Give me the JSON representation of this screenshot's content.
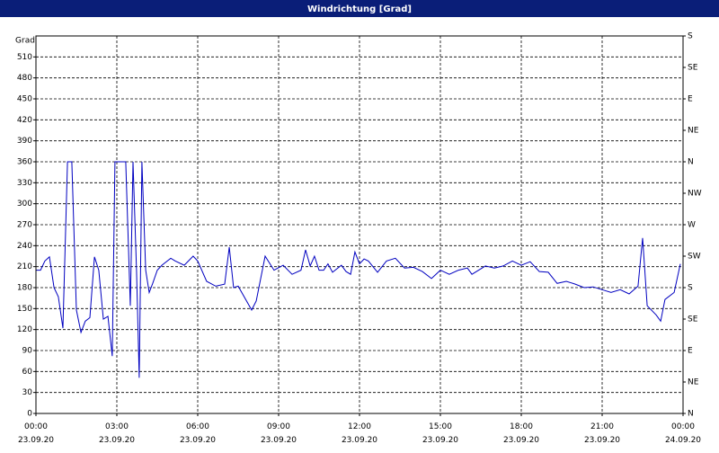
{
  "chart_data": {
    "type": "line",
    "title": "Windrichtung [Grad]",
    "ylabel": "Grad",
    "x": [
      0,
      0.17,
      0.33,
      0.5,
      0.67,
      0.83,
      1,
      1.17,
      1.33,
      1.5,
      1.67,
      1.83,
      2,
      2.17,
      2.33,
      2.5,
      2.67,
      2.83,
      2.93,
      3.17,
      3.33,
      3.5,
      3.6,
      3.73,
      3.83,
      3.93,
      4.07,
      4.2,
      4.33,
      4.5,
      4.67,
      5,
      5.17,
      5.5,
      5.83,
      6,
      6.33,
      6.67,
      7,
      7.17,
      7.33,
      7.5,
      8,
      8.17,
      8.5,
      8.83,
      9.17,
      9.5,
      9.83,
      10,
      10.17,
      10.33,
      10.5,
      10.67,
      10.83,
      11,
      11.33,
      11.5,
      11.67,
      11.83,
      12,
      12.17,
      12.33,
      12.67,
      13,
      13.33,
      13.67,
      14,
      14.33,
      14.67,
      15,
      15.33,
      15.67,
      16,
      16.17,
      16.67,
      17,
      17.33,
      17.67,
      18,
      18.33,
      18.67,
      19,
      19.33,
      19.67,
      20,
      20.33,
      20.67,
      21,
      21.33,
      21.67,
      22,
      22.33,
      22.5,
      22.67,
      23,
      23.17,
      23.33,
      23.67,
      23.9
    ],
    "series": [
      {
        "name": "Windrichtung",
        "color": "#0000c0",
        "values": [
          205,
          205,
          218,
          224,
          180,
          167,
          122,
          360,
          360,
          148,
          116,
          132,
          137,
          224,
          205,
          135,
          139,
          82,
          360,
          360,
          360,
          154,
          360,
          205,
          51,
          360,
          205,
          173,
          186,
          205,
          212,
          222,
          218,
          212,
          225,
          218,
          189,
          182,
          185,
          238,
          180,
          182,
          148,
          161,
          225,
          205,
          212,
          199,
          205,
          234,
          211,
          225,
          205,
          205,
          214,
          202,
          212,
          203,
          199,
          231,
          214,
          221,
          218,
          202,
          218,
          222,
          208,
          209,
          203,
          193,
          205,
          199,
          205,
          208,
          199,
          211,
          208,
          211,
          218,
          212,
          217,
          203,
          202,
          186,
          189,
          185,
          180,
          181,
          177,
          173,
          177,
          171,
          182,
          251,
          154,
          141,
          132,
          163,
          173,
          214
        ]
      }
    ],
    "xlim": [
      0,
      24
    ],
    "xticks": [
      {
        "value": 0,
        "label": "00:00 23.09.20"
      },
      {
        "value": 3,
        "label": "03:00 23.09.20"
      },
      {
        "value": 6,
        "label": "06:00 23.09.20"
      },
      {
        "value": 9,
        "label": "09:00 23.09.20"
      },
      {
        "value": 12,
        "label": "12:00 23.09.20"
      },
      {
        "value": 15,
        "label": "15:00 23.09.20"
      },
      {
        "value": 18,
        "label": "18:00 23.09.20"
      },
      {
        "value": 21,
        "label": "21:00 23.09.20"
      },
      {
        "value": 24,
        "label": "00:00 24.09.20"
      }
    ],
    "ylim": [
      0,
      540
    ],
    "yticks": [
      0,
      30,
      60,
      90,
      120,
      150,
      180,
      210,
      240,
      270,
      300,
      330,
      360,
      390,
      420,
      450,
      480,
      510
    ],
    "y2lim": [
      0,
      540
    ],
    "y2ticks": [
      {
        "value": 0,
        "label": "N"
      },
      {
        "value": 45,
        "label": "NE"
      },
      {
        "value": 90,
        "label": "E"
      },
      {
        "value": 135,
        "label": "SE"
      },
      {
        "value": 180,
        "label": "S"
      },
      {
        "value": 225,
        "label": "SW"
      },
      {
        "value": 270,
        "label": "W"
      },
      {
        "value": 315,
        "label": "NW"
      },
      {
        "value": 360,
        "label": "N"
      },
      {
        "value": 405,
        "label": "NE"
      },
      {
        "value": 450,
        "label": "E"
      },
      {
        "value": 495,
        "label": "SE"
      },
      {
        "value": 540,
        "label": "S"
      }
    ],
    "grid": true
  }
}
